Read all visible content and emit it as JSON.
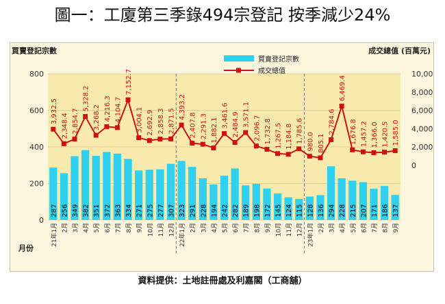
{
  "title": "圖一：工廈第三季錄494宗登記 按季減少24%",
  "source": "資料提供：土地註冊處及利嘉閣（工商舖）",
  "colors": {
    "bar": "#2fd0f0",
    "line": "#cc1111",
    "plot_bg": "#f8e9ad",
    "outer_bg": "#fdf6de"
  },
  "chart_data": {
    "type": "bar",
    "title": "圖一：工廈第三季錄494宗登記 按季減少24%",
    "ylabel": "買賣登記宗數",
    "y2label": "成交總值 (百萬元)",
    "xlabel": "月份",
    "ylim": [
      0,
      800
    ],
    "y2lim": [
      -6000,
      10000
    ],
    "yticks": [
      0,
      200,
      400,
      600,
      800
    ],
    "y2ticks": [
      "0",
      "2,000",
      "4,000",
      "6,000",
      "8,000",
      "10,000"
    ],
    "legend": [
      "買賣登記宗數",
      "成交總值"
    ],
    "categories": [
      "21年1月",
      "2月",
      "3月",
      "4月",
      "5月",
      "6月",
      "7月",
      "8月",
      "9月",
      "10月",
      "11月",
      "12月",
      "22年1月",
      "2月",
      "3月",
      "4月",
      "5月",
      "6月",
      "7月",
      "8月",
      "9月",
      "10月",
      "11月",
      "12月",
      "23年1月",
      "2月",
      "3月",
      "4月",
      "5月",
      "6月",
      "7月",
      "8月",
      "9月"
    ],
    "series": [
      {
        "name": "買賣登記宗數",
        "axis": "left",
        "type": "bar",
        "values": [
          287,
          256,
          349,
          382,
          351,
          372,
          363,
          334,
          271,
          275,
          277,
          307,
          323,
          291,
          228,
          194,
          242,
          282,
          189,
          198,
          172,
          145,
          124,
          115,
          128,
          136,
          294,
          228,
          215,
          207,
          171,
          186,
          137
        ],
        "labels": [
          "287",
          "256",
          "349",
          "382",
          "351",
          "372",
          "363",
          "334",
          "271",
          "275",
          "277",
          "307",
          "323",
          "291",
          "228",
          "194",
          "242",
          "282",
          "189",
          "198",
          "172",
          "145",
          "124",
          "115",
          "128",
          "136",
          "294",
          "228",
          "215",
          "207",
          "171",
          "186",
          "137"
        ]
      },
      {
        "name": "成交總值",
        "axis": "right",
        "type": "line",
        "values": [
          3932.5,
          2348.4,
          2854.7,
          5328.2,
          3268.2,
          4216.3,
          4104.7,
          7152.7,
          3004.1,
          2692.9,
          2858.3,
          2871.5,
          4393.2,
          2407.8,
          2291.3,
          1882.1,
          3461.6,
          2484.9,
          3571.1,
          2096.7,
          1732.8,
          1267.5,
          1184.8,
          1785.6,
          980.0,
          805.1,
          2784.6,
          6469.4,
          1676.8,
          1457.2,
          1366.0,
          1420.5,
          1585.0
        ],
        "labels": [
          "3,932.5",
          "2,348.4",
          "2,854.7",
          "5,328.2",
          "3,268.2",
          "4,216.3",
          "4,104.7",
          "7,152.7",
          "3,004.1",
          "2,692.9",
          "2,858.3",
          "2,871.5",
          "4,393.2",
          "2,407.8",
          "2,291.3",
          "1,882.1",
          "3,461.6",
          "2,484.9",
          "3,571.1",
          "2,096.7",
          "1,732.8",
          "1,267.5",
          "1,184.8",
          "1,785.6",
          "980.0",
          "805.1",
          "2,784.6",
          "6,469.4",
          "1,676.8",
          "1,457.2",
          "1,366.0",
          "1,420.5",
          "1,585.0"
        ]
      }
    ],
    "dividers_after_index": [
      11,
      23
    ]
  }
}
